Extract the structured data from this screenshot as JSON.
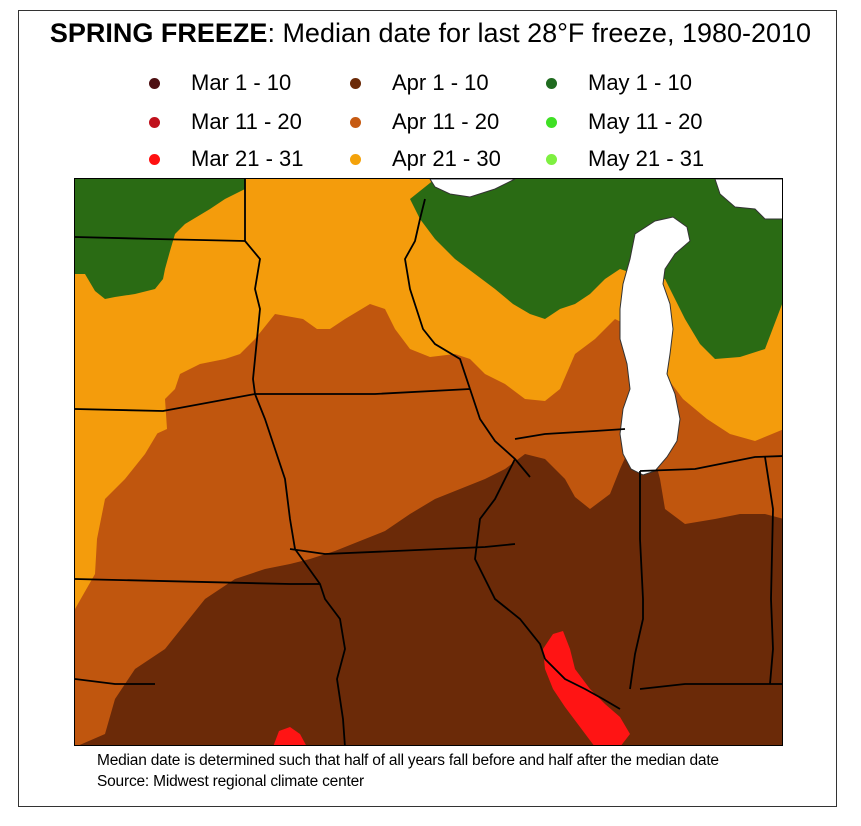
{
  "title": {
    "bold": "SPRING FREEZE",
    "rest": ": Median date for last 28°F freeze, 1980-2010"
  },
  "legend": [
    {
      "label": "Mar 1 - 10",
      "color": "#4d0f12"
    },
    {
      "label": "Apr 1 - 10",
      "color": "#6b2a08"
    },
    {
      "label": "May 1 - 10",
      "color": "#1f6b1f"
    },
    {
      "label": "Mar 11 - 20",
      "color": "#c0101c"
    },
    {
      "label": "Apr 11 - 20",
      "color": "#c65a12"
    },
    {
      "label": "May 11 - 20",
      "color": "#3fe024"
    },
    {
      "label": "Mar 21 - 31",
      "color": "#ff1010"
    },
    {
      "label": "Apr 21 - 30",
      "color": "#f4a20a"
    },
    {
      "label": "May 21 - 31",
      "color": "#7ef040"
    }
  ],
  "map_colors": {
    "may_1_10": "#2a6b14",
    "apr_21_30": "#f49c0c",
    "apr_11_20": "#c0560e",
    "apr_1_10": "#6b2a08",
    "mar_21_31": "#ff1414",
    "lake": "#ffffff",
    "border": "#000000"
  },
  "footnotes": {
    "line1": "Median date is determined such that half of all years fall before and half after the median date",
    "line2": "Source: Midwest regional climate center"
  }
}
